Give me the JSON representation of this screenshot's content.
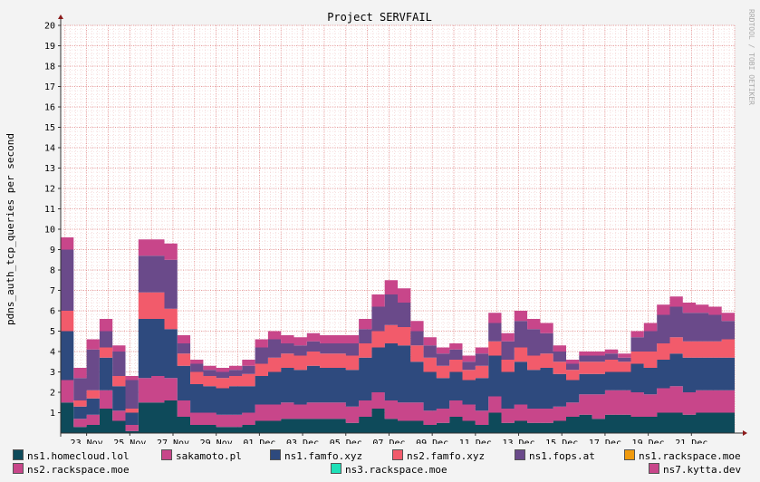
{
  "chart_data": {
    "type": "area",
    "title": "Project SERVFAIL",
    "ylabel": "pdns_auth_tcp_queries per second",
    "watermark": "RRDTOOL / TOBI OETIKER",
    "ylim": [
      0,
      20
    ],
    "yticks": [
      1,
      2,
      3,
      4,
      5,
      6,
      7,
      8,
      9,
      10,
      11,
      12,
      13,
      14,
      15,
      16,
      17,
      18,
      19,
      20
    ],
    "xlim_days": [
      21.8,
      53.0
    ],
    "xticks": [
      {
        "label": "23 Nov",
        "day": 23
      },
      {
        "label": "25 Nov",
        "day": 25
      },
      {
        "label": "27 Nov",
        "day": 27
      },
      {
        "label": "29 Nov",
        "day": 29
      },
      {
        "label": "01 Dec",
        "day": 31
      },
      {
        "label": "03 Dec",
        "day": 33
      },
      {
        "label": "05 Dec",
        "day": 35
      },
      {
        "label": "07 Dec",
        "day": 37
      },
      {
        "label": "09 Dec",
        "day": 39
      },
      {
        "label": "11 Dec",
        "day": 41
      },
      {
        "label": "13 Dec",
        "day": 43
      },
      {
        "label": "15 Dec",
        "day": 45
      },
      {
        "label": "17 Dec",
        "day": 47
      },
      {
        "label": "19 Dec",
        "day": 49
      },
      {
        "label": "21 Dec",
        "day": 51
      }
    ],
    "grid": true,
    "stacked": true,
    "legend_position": "bottom",
    "series": [
      {
        "name": "ns1.homecloud.lol",
        "color": "#0e4a5a",
        "values": [
          1.5,
          0.3,
          0.4,
          1.2,
          0.6,
          0.1,
          1.5,
          1.5,
          1.6,
          0.8,
          0.4,
          0.4,
          0.3,
          0.3,
          0.4,
          0.6,
          0.6,
          0.7,
          0.7,
          0.7,
          0.7,
          0.7,
          0.5,
          0.8,
          1.2,
          0.7,
          0.6,
          0.6,
          0.4,
          0.5,
          0.8,
          0.6,
          0.4,
          1.0,
          0.5,
          0.6,
          0.5,
          0.5,
          0.6,
          0.8,
          0.9,
          0.7,
          0.9,
          0.9,
          0.8,
          0.8,
          1.0,
          1.0,
          0.9,
          1.0,
          1.0,
          1.0
        ]
      },
      {
        "name": "sakamoto.pl",
        "color": "#c8468a",
        "values": [
          1.1,
          0.4,
          0.5,
          0.9,
          0.5,
          0.3,
          1.2,
          1.3,
          1.1,
          0.8,
          0.6,
          0.6,
          0.6,
          0.6,
          0.6,
          0.8,
          0.8,
          0.8,
          0.7,
          0.8,
          0.8,
          0.8,
          0.8,
          0.8,
          0.8,
          0.9,
          0.9,
          0.9,
          0.7,
          0.7,
          0.8,
          0.8,
          0.7,
          0.8,
          0.7,
          0.8,
          0.7,
          0.7,
          0.7,
          0.7,
          1.0,
          1.2,
          1.2,
          1.2,
          1.2,
          1.1,
          1.2,
          1.3,
          1.1,
          1.1,
          1.1,
          1.1
        ]
      },
      {
        "name": "ns1.famfo.xyz",
        "color": "#2e4a7e",
        "values": [
          2.4,
          0.6,
          0.8,
          1.6,
          1.2,
          0.6,
          2.9,
          2.8,
          2.4,
          1.7,
          1.4,
          1.3,
          1.3,
          1.4,
          1.3,
          1.4,
          1.6,
          1.7,
          1.7,
          1.8,
          1.7,
          1.7,
          1.8,
          2.1,
          2.2,
          2.8,
          2.8,
          2.0,
          1.9,
          1.5,
          1.4,
          1.2,
          1.6,
          2.0,
          1.8,
          2.1,
          1.9,
          2.0,
          1.6,
          1.1,
          1.0,
          1.0,
          0.9,
          0.9,
          1.4,
          1.3,
          1.4,
          1.6,
          1.7,
          1.6,
          1.6,
          1.6
        ]
      },
      {
        "name": "ns2.famfo.xyz",
        "color": "#f25b6b",
        "values": [
          1.0,
          0.3,
          0.4,
          0.5,
          0.5,
          0.2,
          1.3,
          1.3,
          1.0,
          0.6,
          0.6,
          0.5,
          0.5,
          0.5,
          0.6,
          0.6,
          0.7,
          0.7,
          0.7,
          0.7,
          0.7,
          0.7,
          0.7,
          0.7,
          0.8,
          0.9,
          0.9,
          0.8,
          0.7,
          0.6,
          0.6,
          0.5,
          0.6,
          0.7,
          0.6,
          0.7,
          0.7,
          0.7,
          0.6,
          0.5,
          0.6,
          0.6,
          0.6,
          0.5,
          0.6,
          0.8,
          0.8,
          0.8,
          0.8,
          0.8,
          0.8,
          0.9
        ]
      },
      {
        "name": "ns1.fops.at",
        "color": "#6a4a8a",
        "values": [
          3.0,
          1.1,
          2.0,
          0.8,
          1.2,
          1.4,
          1.8,
          1.8,
          2.4,
          0.5,
          0.4,
          0.3,
          0.3,
          0.3,
          0.4,
          0.8,
          0.9,
          0.5,
          0.5,
          0.5,
          0.5,
          0.5,
          0.6,
          0.7,
          1.2,
          1.5,
          1.2,
          0.7,
          0.6,
          0.6,
          0.5,
          0.4,
          0.6,
          0.9,
          0.9,
          1.3,
          1.3,
          1.0,
          0.5,
          0.3,
          0.3,
          0.3,
          0.3,
          0.2,
          0.7,
          1.0,
          1.4,
          1.5,
          1.4,
          1.4,
          1.3,
          0.9
        ]
      },
      {
        "name": "ns1.rackspace.moe",
        "color": "#f09a0e",
        "values": [
          0,
          0,
          0,
          0,
          0,
          0,
          0,
          0,
          0,
          0,
          0,
          0,
          0,
          0,
          0,
          0,
          0,
          0,
          0,
          0,
          0,
          0,
          0,
          0,
          0,
          0,
          0,
          0,
          0,
          0,
          0,
          0,
          0,
          0,
          0,
          0,
          0,
          0,
          0,
          0,
          0,
          0,
          0,
          0,
          0,
          0,
          0,
          0,
          0,
          0,
          0,
          0
        ]
      },
      {
        "name": "ns2.rackspace.moe",
        "color": "#c8468a",
        "values": [
          0.6,
          0.5,
          0.5,
          0.6,
          0.3,
          0.2,
          0.8,
          0.8,
          0.8,
          0.4,
          0.2,
          0.2,
          0.2,
          0.2,
          0.3,
          0.4,
          0.4,
          0.4,
          0.4,
          0.4,
          0.4,
          0.4,
          0.4,
          0.5,
          0.6,
          0.7,
          0.7,
          0.5,
          0.4,
          0.3,
          0.3,
          0.3,
          0.3,
          0.5,
          0.4,
          0.5,
          0.5,
          0.5,
          0.3,
          0.2,
          0.2,
          0.2,
          0.2,
          0.2,
          0.3,
          0.4,
          0.5,
          0.5,
          0.5,
          0.4,
          0.4,
          0.4
        ]
      },
      {
        "name": "ns3.rackspace.moe",
        "color": "#1ee0b8",
        "values": [
          0,
          0,
          0,
          0,
          0,
          0,
          0,
          0,
          0,
          0,
          0,
          0,
          0,
          0,
          0,
          0,
          0,
          0,
          0,
          0,
          0,
          0,
          0,
          0,
          0,
          0,
          0,
          0,
          0,
          0,
          0,
          0,
          0,
          0,
          0,
          0,
          0,
          0,
          0,
          0,
          0,
          0,
          0,
          0,
          0,
          0,
          0,
          0,
          0,
          0,
          0,
          0
        ]
      },
      {
        "name": "ns7.kytta.dev",
        "color": "#c8468a",
        "values": [
          0,
          0,
          0,
          0,
          0,
          0,
          0,
          0,
          0,
          0,
          0,
          0,
          0,
          0,
          0,
          0,
          0,
          0,
          0,
          0,
          0,
          0,
          0,
          0,
          0,
          0,
          0,
          0,
          0,
          0,
          0,
          0,
          0,
          0,
          0,
          0,
          0,
          0,
          0,
          0,
          0,
          0,
          0,
          0,
          0,
          0,
          0,
          0,
          0,
          0,
          0,
          0
        ]
      }
    ]
  }
}
